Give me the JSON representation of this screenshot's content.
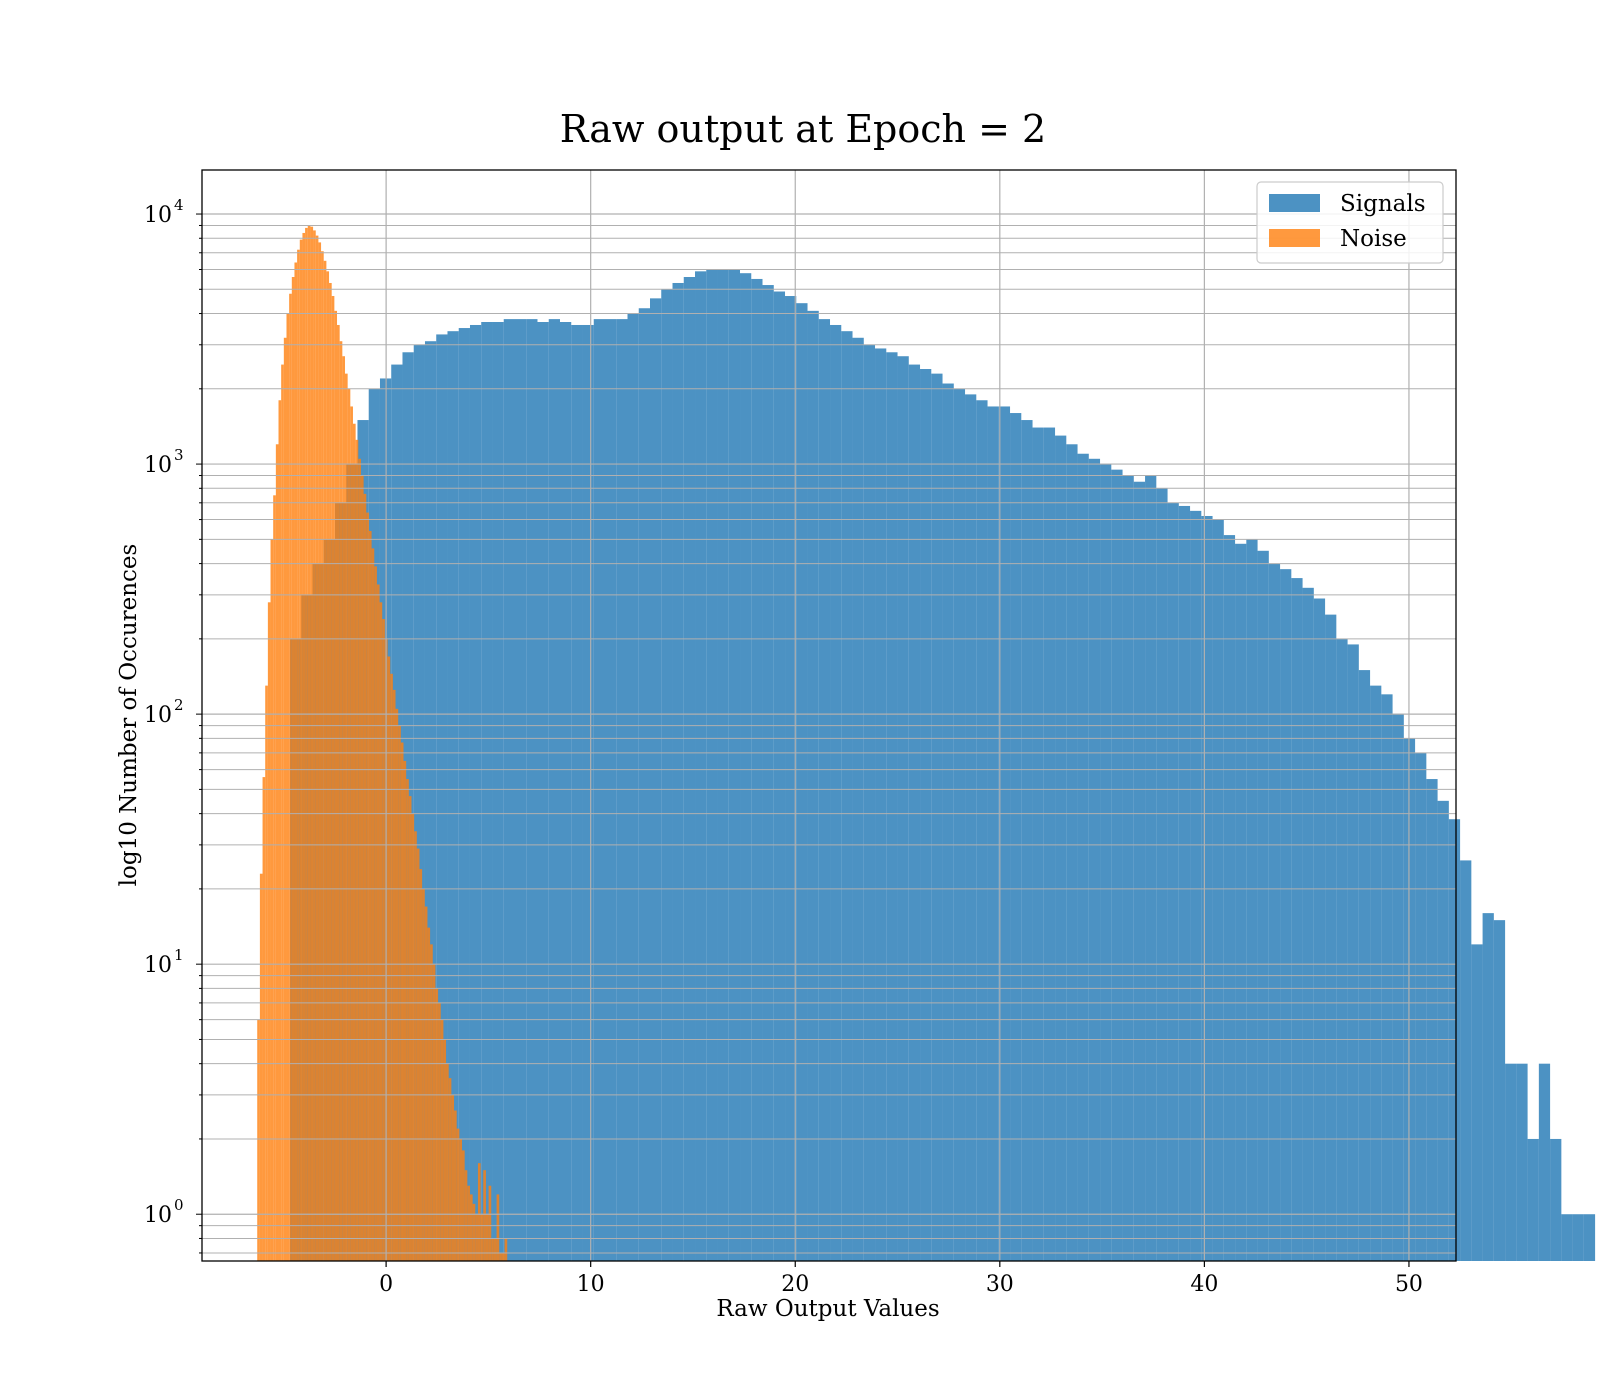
{
  "chart_data": {
    "type": "bar",
    "title": "Raw output at Epoch = 2",
    "xlabel": "Raw Output Values",
    "ylabel": "log10 Number of Occurences",
    "yscale": "log",
    "xlim": [
      -9,
      52.3
    ],
    "ylim": [
      0.65,
      15000
    ],
    "grid": true,
    "legend_position": "top-right",
    "x_ticks": [
      0,
      10,
      20,
      30,
      40,
      50
    ],
    "y_ticks": [
      1,
      10,
      100,
      1000,
      10000
    ],
    "y_tick_labels": [
      {
        "base": "10",
        "exp": "0"
      },
      {
        "base": "10",
        "exp": "1"
      },
      {
        "base": "10",
        "exp": "2"
      },
      {
        "base": "10",
        "exp": "3"
      },
      {
        "base": "10",
        "exp": "4"
      }
    ],
    "series": [
      {
        "name": "Signals",
        "color": "#1f77b4",
        "bin_start": -4.7,
        "bin_width": 0.55,
        "counts": [
          200,
          300,
          400,
          500,
          700,
          1000,
          1500,
          2000,
          2200,
          2500,
          2800,
          3000,
          3100,
          3300,
          3400,
          3500,
          3600,
          3700,
          3700,
          3800,
          3800,
          3800,
          3700,
          3800,
          3700,
          3600,
          3600,
          3800,
          3800,
          3800,
          4000,
          4200,
          4600,
          5000,
          5300,
          5600,
          5900,
          6000,
          6000,
          6000,
          5800,
          5500,
          5200,
          4900,
          4700,
          4400,
          4100,
          3800,
          3600,
          3400,
          3200,
          3000,
          2900,
          2800,
          2700,
          2500,
          2400,
          2300,
          2100,
          2000,
          1900,
          1800,
          1700,
          1700,
          1600,
          1500,
          1400,
          1400,
          1300,
          1200,
          1100,
          1050,
          1000,
          950,
          900,
          850,
          900,
          800,
          700,
          680,
          650,
          620,
          600,
          520,
          480,
          500,
          450,
          400,
          380,
          350,
          320,
          290,
          250,
          200,
          190,
          150,
          130,
          120,
          100,
          80,
          70,
          55,
          45,
          38,
          26,
          12,
          16,
          15,
          4,
          4,
          2,
          4,
          2,
          1,
          1,
          1
        ]
      },
      {
        "name": "Noise",
        "color": "#ff7f0e",
        "bin_start": -6.3,
        "bin_width": 0.13,
        "counts": [
          6,
          23,
          56,
          130,
          280,
          500,
          750,
          1200,
          1800,
          2500,
          3200,
          4000,
          4800,
          5600,
          6400,
          7200,
          7900,
          8400,
          8800,
          9000,
          8900,
          8600,
          8200,
          7700,
          7100,
          6500,
          5900,
          5300,
          4700,
          4100,
          3600,
          3100,
          2700,
          2300,
          2000,
          1700,
          1450,
          1250,
          1050,
          900,
          760,
          640,
          540,
          460,
          390,
          330,
          280,
          240,
          200,
          170,
          145,
          125,
          105,
          90,
          77,
          65,
          55,
          47,
          40,
          34,
          29,
          24,
          20,
          17,
          14,
          12,
          10,
          8,
          7,
          6,
          5,
          4,
          3.5,
          3,
          2.6,
          2.2,
          2,
          1.8,
          1.5,
          1.3,
          1.2,
          1.1,
          1,
          1.6,
          1,
          1.5,
          1,
          1.3,
          0.8,
          0.8,
          1.2,
          0.7,
          0.7,
          0.8
        ]
      }
    ]
  }
}
